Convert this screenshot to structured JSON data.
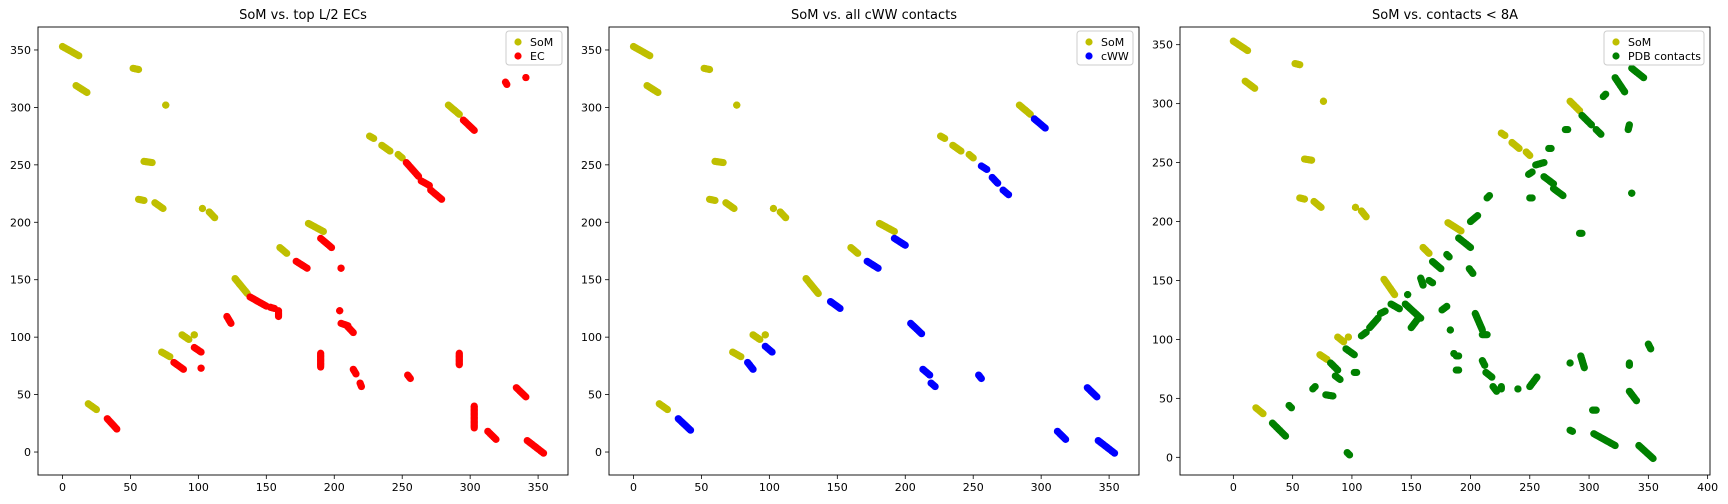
{
  "chart_data": [
    {
      "type": "scatter",
      "title": "SoM vs. top L/2 ECs",
      "xlabel": "",
      "ylabel": "",
      "xlim": [
        -18,
        372
      ],
      "ylim": [
        -20,
        370
      ],
      "xticks": [
        0,
        50,
        100,
        150,
        200,
        250,
        300,
        350
      ],
      "yticks": [
        0,
        50,
        100,
        150,
        200,
        250,
        300,
        350
      ],
      "legend": "top-right",
      "series": [
        {
          "name": "SoM",
          "color": "#bfbf00",
          "segments": [
            [
              0,
              353,
              12,
              345
            ],
            [
              10,
              319,
              18,
              313
            ],
            [
              52,
              334,
              56,
              333
            ],
            [
              76,
              302,
              76,
              302
            ],
            [
              60,
              253,
              66,
              252
            ],
            [
              56,
              220,
              60,
              219
            ],
            [
              68,
              217,
              74,
              212
            ],
            [
              103,
              212,
              103,
              212
            ],
            [
              108,
              209,
              112,
              204
            ],
            [
              127,
              151,
              136,
              138
            ],
            [
              160,
              178,
              165,
              173
            ],
            [
              181,
              199,
              192,
              192
            ],
            [
              226,
              275,
              229,
              273
            ],
            [
              235,
              267,
              241,
              262
            ],
            [
              247,
              259,
              250,
              256
            ],
            [
              284,
              302,
              292,
              294
            ],
            [
              19,
              42,
              25,
              37
            ],
            [
              73,
              87,
              79,
              83
            ],
            [
              88,
              102,
              93,
              98
            ],
            [
              97,
              102,
              97,
              102
            ]
          ]
        },
        {
          "name": "EC",
          "color": "#ff0000",
          "segments": [
            [
              33,
              29,
              40,
              20
            ],
            [
              82,
              78,
              89,
              72
            ],
            [
              97,
              91,
              102,
              87
            ],
            [
              102,
              73,
              102,
              73
            ],
            [
              121,
              118,
              124,
              112
            ],
            [
              138,
              135,
              150,
              127
            ],
            [
              153,
              126,
              156,
              125
            ],
            [
              159,
              123,
              159,
              118
            ],
            [
              172,
              166,
              180,
              160
            ],
            [
              190,
              186,
              198,
              178
            ],
            [
              205,
              160,
              205,
              160
            ],
            [
              204,
              123,
              204,
              123
            ],
            [
              205,
              112,
              210,
              110
            ],
            [
              210,
              109,
              214,
              104
            ],
            [
              214,
              72,
              216,
              68
            ],
            [
              219,
              60,
              220,
              57
            ],
            [
              190,
              86,
              190,
              74
            ],
            [
              253,
              252,
              262,
              240
            ],
            [
              264,
              236,
              270,
              232
            ],
            [
              271,
              228,
              279,
              220
            ],
            [
              295,
              289,
              303,
              280
            ],
            [
              254,
              67,
              256,
              64
            ],
            [
              292,
              86,
              292,
              76
            ],
            [
              303,
              40,
              303,
              21
            ],
            [
              313,
              18,
              319,
              11
            ],
            [
              326,
              322,
              327,
              320
            ],
            [
              341,
              326,
              341,
              326
            ],
            [
              334,
              56,
              341,
              48
            ],
            [
              342,
              10,
              354,
              -1
            ]
          ]
        }
      ]
    },
    {
      "type": "scatter",
      "title": "SoM vs. all cWW contacts",
      "xlabel": "",
      "ylabel": "",
      "xlim": [
        -18,
        372
      ],
      "ylim": [
        -20,
        370
      ],
      "xticks": [
        0,
        50,
        100,
        150,
        200,
        250,
        300,
        350
      ],
      "yticks": [
        0,
        50,
        100,
        150,
        200,
        250,
        300,
        350
      ],
      "legend": "top-right",
      "series": [
        {
          "name": "SoM",
          "color": "#bfbf00",
          "segments": [
            [
              0,
              353,
              12,
              345
            ],
            [
              10,
              319,
              18,
              313
            ],
            [
              52,
              334,
              56,
              333
            ],
            [
              76,
              302,
              76,
              302
            ],
            [
              60,
              253,
              66,
              252
            ],
            [
              56,
              220,
              60,
              219
            ],
            [
              68,
              217,
              74,
              212
            ],
            [
              103,
              212,
              103,
              212
            ],
            [
              108,
              209,
              112,
              204
            ],
            [
              127,
              151,
              136,
              138
            ],
            [
              160,
              178,
              165,
              173
            ],
            [
              181,
              199,
              192,
              192
            ],
            [
              226,
              275,
              229,
              273
            ],
            [
              235,
              267,
              241,
              262
            ],
            [
              247,
              259,
              250,
              256
            ],
            [
              284,
              302,
              292,
              294
            ],
            [
              19,
              42,
              25,
              37
            ],
            [
              73,
              87,
              79,
              83
            ],
            [
              88,
              102,
              93,
              98
            ],
            [
              97,
              102,
              97,
              102
            ]
          ]
        },
        {
          "name": "cWW",
          "color": "#0000ff",
          "segments": [
            [
              33,
              29,
              42,
              19
            ],
            [
              84,
              78,
              88,
              72
            ],
            [
              97,
              92,
              102,
              87
            ],
            [
              145,
              131,
              152,
              125
            ],
            [
              172,
              166,
              180,
              160
            ],
            [
              192,
              186,
              200,
              180
            ],
            [
              204,
              112,
              212,
              103
            ],
            [
              213,
              72,
              218,
              67
            ],
            [
              219,
              60,
              222,
              57
            ],
            [
              256,
              249,
              260,
              246
            ],
            [
              264,
              239,
              268,
              234
            ],
            [
              272,
              228,
              276,
              224
            ],
            [
              295,
              290,
              303,
              282
            ],
            [
              254,
              67,
              256,
              64
            ],
            [
              312,
              18,
              318,
              11
            ],
            [
              334,
              56,
              341,
              48
            ],
            [
              342,
              10,
              354,
              -1
            ]
          ]
        }
      ]
    },
    {
      "type": "scatter",
      "title": "SoM vs. contacts < 8A",
      "xlabel": "",
      "ylabel": "",
      "xlim": [
        -45,
        402
      ],
      "ylim": [
        -15,
        365
      ],
      "xticks": [
        0,
        50,
        100,
        150,
        200,
        250,
        300,
        350,
        400
      ],
      "yticks": [
        0,
        50,
        100,
        150,
        200,
        250,
        300,
        350
      ],
      "legend": "top-right",
      "series": [
        {
          "name": "SoM",
          "color": "#bfbf00",
          "segments": [
            [
              0,
              353,
              12,
              345
            ],
            [
              10,
              319,
              18,
              313
            ],
            [
              52,
              334,
              56,
              333
            ],
            [
              76,
              302,
              76,
              302
            ],
            [
              60,
              253,
              66,
              252
            ],
            [
              56,
              220,
              60,
              219
            ],
            [
              68,
              217,
              74,
              212
            ],
            [
              103,
              212,
              103,
              212
            ],
            [
              108,
              209,
              112,
              204
            ],
            [
              127,
              151,
              136,
              138
            ],
            [
              160,
              178,
              165,
              173
            ],
            [
              181,
              199,
              192,
              192
            ],
            [
              226,
              275,
              229,
              273
            ],
            [
              235,
              267,
              241,
              262
            ],
            [
              247,
              259,
              250,
              256
            ],
            [
              284,
              302,
              292,
              294
            ],
            [
              19,
              42,
              25,
              37
            ],
            [
              73,
              87,
              79,
              83
            ],
            [
              88,
              102,
              93,
              98
            ],
            [
              97,
              102,
              97,
              102
            ]
          ]
        },
        {
          "name": "PDB contacts",
          "color": "#008000",
          "segments": [
            [
              33,
              29,
              44,
              18
            ],
            [
              47,
              44,
              49,
              42
            ],
            [
              67,
              58,
              69,
              60
            ],
            [
              78,
              53,
              84,
              52
            ],
            [
              82,
              80,
              88,
              74
            ],
            [
              86,
              69,
              90,
              66
            ],
            [
              95,
              92,
              102,
              87
            ],
            [
              102,
              72,
              104,
              72
            ],
            [
              96,
              4,
              98,
              2
            ],
            [
              108,
              103,
              112,
              106
            ],
            [
              115,
              110,
              122,
              118
            ],
            [
              124,
              122,
              128,
              124
            ],
            [
              133,
              130,
              140,
              126
            ],
            [
              145,
              130,
              158,
              118
            ],
            [
              147,
              138,
              147,
              138
            ],
            [
              150,
              110,
              156,
              118
            ],
            [
              158,
              152,
              160,
              146
            ],
            [
              165,
              150,
              168,
              148
            ],
            [
              168,
              166,
              175,
              160
            ],
            [
              176,
              125,
              180,
              128
            ],
            [
              183,
              108,
              183,
              108
            ],
            [
              180,
              172,
              182,
              170
            ],
            [
              186,
              88,
              186,
              88
            ],
            [
              188,
              74,
              190,
              74
            ],
            [
              188,
              86,
              190,
              86
            ],
            [
              190,
              186,
              200,
              178
            ],
            [
              199,
              160,
              202,
              156
            ],
            [
              204,
              122,
              210,
              108
            ],
            [
              210,
              104,
              214,
              104
            ],
            [
              210,
              82,
              212,
              78
            ],
            [
              213,
              72,
              218,
              68
            ],
            [
              219,
              60,
              222,
              56
            ],
            [
              226,
              60,
              226,
              58
            ],
            [
              200,
              200,
              206,
              205
            ],
            [
              214,
              220,
              216,
              222
            ],
            [
              240,
              58,
              240,
              58
            ],
            [
              250,
              60,
              256,
              68
            ],
            [
              249,
              240,
              252,
              242
            ],
            [
              250,
              220,
              252,
              220
            ],
            [
              255,
              248,
              262,
              250
            ],
            [
              262,
              238,
              270,
              232
            ],
            [
              270,
              228,
              278,
              222
            ],
            [
              266,
              262,
              268,
              262
            ],
            [
              280,
              278,
              282,
              278
            ],
            [
              284,
              23,
              286,
              22
            ],
            [
              284,
              80,
              284,
              80
            ],
            [
              292,
              190,
              294,
              190
            ],
            [
              293,
              86,
              296,
              76
            ],
            [
              294,
              290,
              302,
              282
            ],
            [
              303,
              40,
              306,
              40
            ],
            [
              306,
              278,
              310,
              274
            ],
            [
              304,
              20,
              322,
              10
            ],
            [
              312,
              306,
              314,
              308
            ],
            [
              322,
              322,
              330,
              310
            ],
            [
              333,
              278,
              334,
              282
            ],
            [
              334,
              80,
              334,
              78
            ],
            [
              334,
              56,
              340,
              48
            ],
            [
              336,
              224,
              336,
              224
            ],
            [
              336,
              330,
              346,
              322
            ],
            [
              342,
              10,
              354,
              -1
            ],
            [
              350,
              96,
              352,
              92
            ]
          ]
        }
      ]
    }
  ]
}
